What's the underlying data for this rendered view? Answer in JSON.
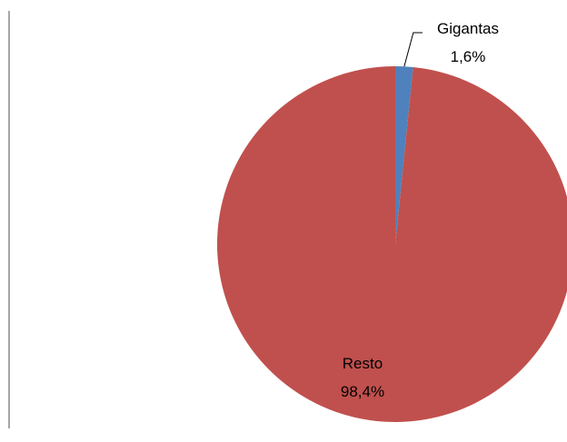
{
  "chart_data": {
    "type": "pie",
    "categories": [
      "Gigantas",
      "Resto"
    ],
    "values": [
      1.6,
      98.4
    ],
    "value_labels": [
      "1,6%",
      "98,4%"
    ],
    "colors": [
      "#4f81bd",
      "#c0504d"
    ],
    "start_angle_deg": 0,
    "direction": "clockwise"
  }
}
